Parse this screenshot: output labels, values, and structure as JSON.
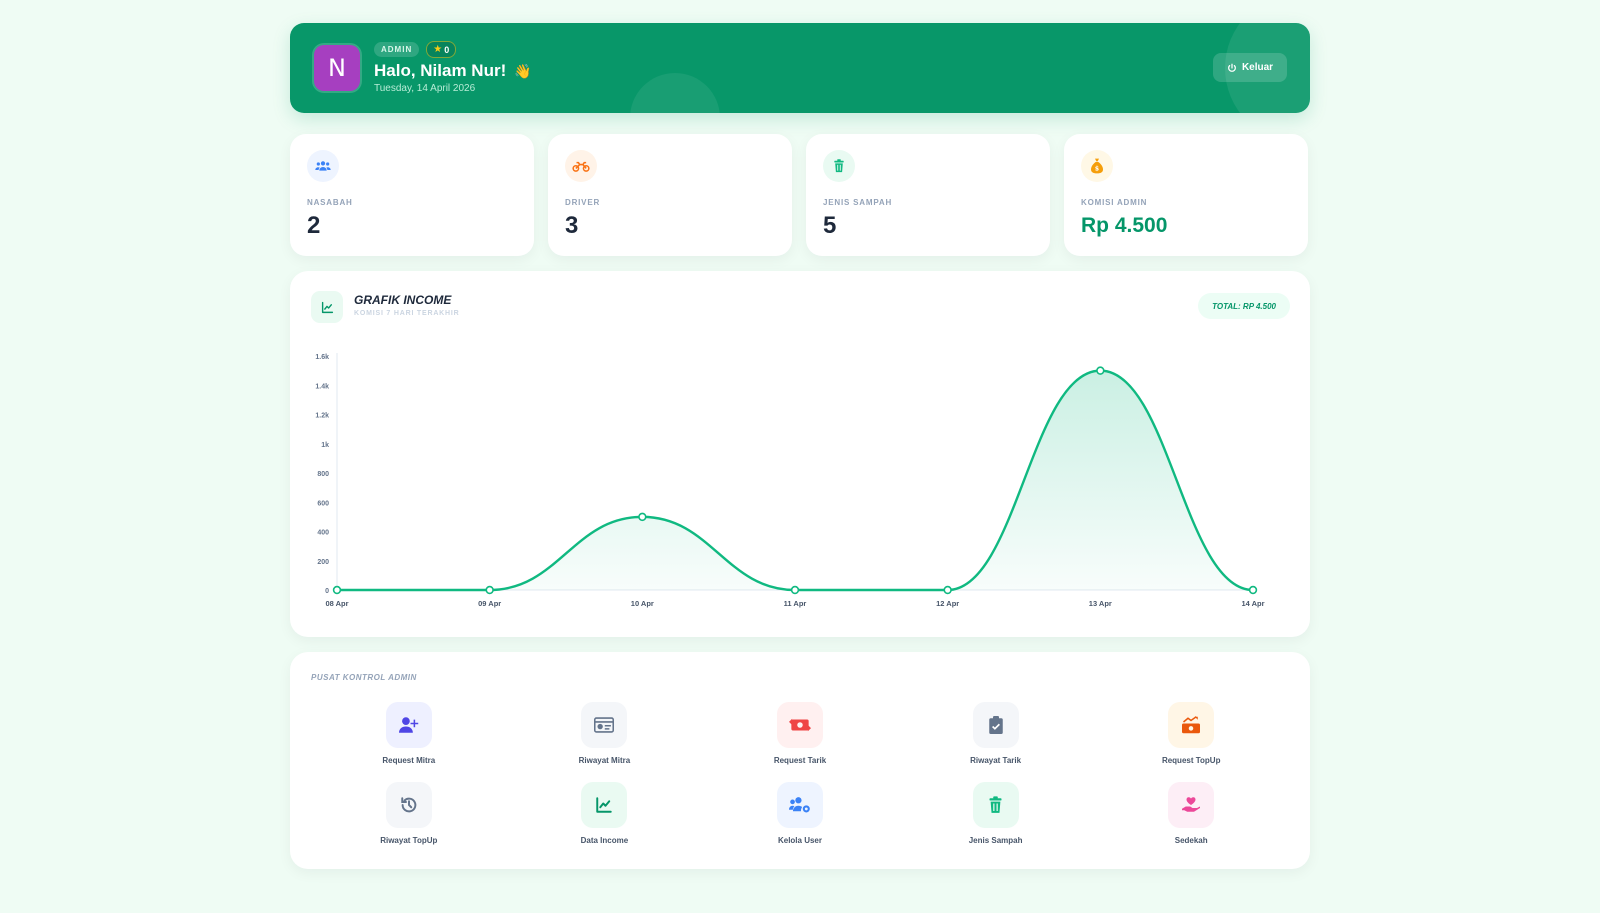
{
  "header": {
    "avatar_initial": "N",
    "role_badge": "ADMIN",
    "star_count": "0",
    "greeting": "Halo, Nilam Nur!",
    "wave_emoji": "👋",
    "date": "Tuesday, 14 April 2026",
    "logout_label": "Keluar"
  },
  "stats": [
    {
      "label": "NASABAH",
      "value": "2",
      "icon": "users-icon",
      "color": "#3b82f6",
      "bg": "#eef4ff"
    },
    {
      "label": "DRIVER",
      "value": "3",
      "icon": "motorcycle-icon",
      "color": "#f97316",
      "bg": "#fff3e8"
    },
    {
      "label": "JENIS SAMPAH",
      "value": "5",
      "icon": "trash-icon",
      "color": "#10b981",
      "bg": "#e9faf2"
    },
    {
      "label": "KOMISI ADMIN",
      "value": "Rp 4.500",
      "icon": "money-bag-icon",
      "color": "#f59e0b",
      "bg": "#fff8e6"
    }
  ],
  "chart_card": {
    "title": "GRAFIK INCOME",
    "subtitle": "KOMISI 7 HARI TERAKHIR",
    "total": "TOTAL: RP 4.500"
  },
  "chart_data": {
    "type": "area",
    "x": [
      "08 Apr",
      "09 Apr",
      "10 Apr",
      "11 Apr",
      "12 Apr",
      "13 Apr",
      "14 Apr"
    ],
    "values": [
      0,
      0,
      500,
      0,
      0,
      1500,
      0
    ],
    "ylim": [
      0,
      1600
    ],
    "yticks": [
      "0",
      "200",
      "400",
      "600",
      "800",
      "1k",
      "1.2k",
      "1.4k",
      "1.6k"
    ],
    "color": "#10b981",
    "grid": false
  },
  "control": {
    "title": "PUSAT KONTROL ADMIN",
    "items": [
      {
        "label": "Request Mitra",
        "icon": "user-plus-icon",
        "color": "#4f46e5",
        "bg": "#eef0ff"
      },
      {
        "label": "Riwayat Mitra",
        "icon": "id-card-icon",
        "color": "#64748b",
        "bg": "#f4f6f9"
      },
      {
        "label": "Request Tarik",
        "icon": "money-transfer-icon",
        "color": "#ef4444",
        "bg": "#fff0f0"
      },
      {
        "label": "Riwayat Tarik",
        "icon": "clipboard-check-icon",
        "color": "#64748b",
        "bg": "#f4f6f9"
      },
      {
        "label": "Request TopUp",
        "icon": "money-growth-icon",
        "color": "#ea580c",
        "bg": "#fff6e6"
      },
      {
        "label": "Riwayat TopUp",
        "icon": "history-icon",
        "color": "#64748b",
        "bg": "#f4f6f9"
      },
      {
        "label": "Data Income",
        "icon": "line-chart-icon",
        "color": "#059669",
        "bg": "#eafaf2"
      },
      {
        "label": "Kelola User",
        "icon": "users-cog-icon",
        "color": "#3b82f6",
        "bg": "#eef4ff"
      },
      {
        "label": "Jenis Sampah",
        "icon": "trash-icon",
        "color": "#10b981",
        "bg": "#e9faf2"
      },
      {
        "label": "Sedekah",
        "icon": "heart-hand-icon",
        "color": "#ec4899",
        "bg": "#fdeef6"
      }
    ]
  }
}
